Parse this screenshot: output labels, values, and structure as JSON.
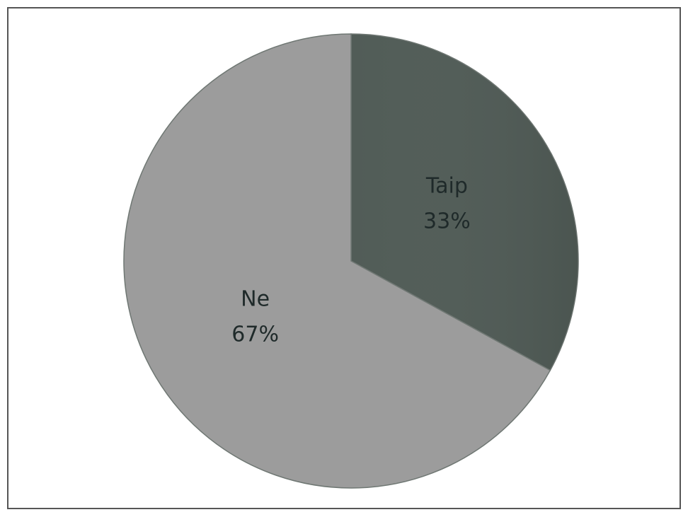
{
  "chart_data": {
    "type": "pie",
    "categories": [
      "Taip",
      "Ne"
    ],
    "values": [
      33,
      67
    ],
    "value_labels": [
      "33%",
      "67%"
    ],
    "colors": [
      "#515c57",
      "#9c9c9c"
    ]
  }
}
